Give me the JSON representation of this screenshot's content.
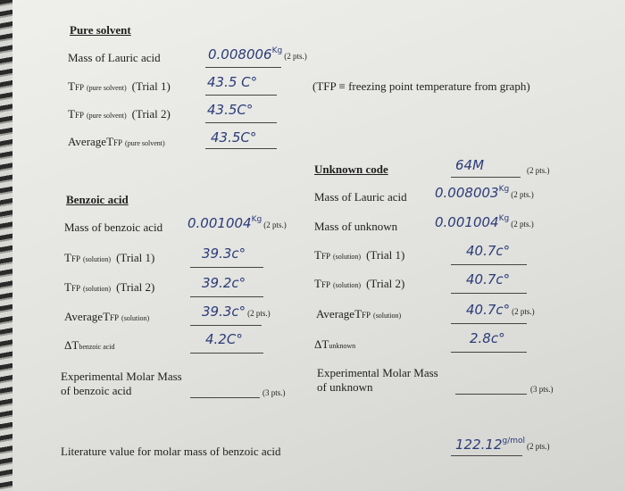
{
  "pure_solvent": {
    "heading": "Pure solvent",
    "mass_label": "Mass of Lauric acid",
    "mass_answer": "0.008006",
    "mass_unit": "Kg",
    "mass_points": "(2 pts.)",
    "note": "(TFP ≡ freezing point temperature from graph)",
    "trials": [
      {
        "symbol": "T",
        "sub": "FP",
        "qualifier": "(pure solvent)",
        "trial": "(Trial 1)",
        "answer": "43.5 C°"
      },
      {
        "symbol": "T",
        "sub": "FP",
        "qualifier": "(pure solvent)",
        "trial": "(Trial 2)",
        "answer": "43.5C°"
      }
    ],
    "average": {
      "prefix": "Average",
      "symbol": "T",
      "sub": "FP",
      "qualifier": "(pure solvent)",
      "answer": "43.5C°"
    }
  },
  "benzoic_acid": {
    "heading": "Benzoic acid",
    "mass_label": "Mass of benzoic acid",
    "mass_answer": "0.001004",
    "mass_unit": "Kg",
    "mass_points": "(2 pts.)",
    "trials": [
      {
        "symbol": "T",
        "sub": "FP",
        "qualifier": "(solution)",
        "trial": "(Trial 1)",
        "answer": "39.3c°"
      },
      {
        "symbol": "T",
        "sub": "FP",
        "qualifier": "(solution)",
        "trial": "(Trial 2)",
        "answer": "39.2c°"
      }
    ],
    "average": {
      "prefix": "Average",
      "symbol": "T",
      "sub": "FP",
      "qualifier": "(solution)",
      "answer": "39.3c°",
      "points": "(2 pts.)"
    },
    "delta": {
      "symbol": "ΔT",
      "qualifier": "benzoic acid",
      "answer": "4.2C°"
    }
  },
  "unknown": {
    "code_label": "Unknown code",
    "code_answer": "64M",
    "code_points": "(2 pts.)",
    "lauric_label": "Mass of Lauric acid",
    "lauric_answer": "0.008003",
    "lauric_unit": "Kg",
    "lauric_points": "(2 pts.)",
    "mass_label": "Mass of unknown",
    "mass_answer": "0.001004",
    "mass_unit": "Kg",
    "mass_points": "(2 pts.)",
    "trials": [
      {
        "symbol": "T",
        "sub": "FP",
        "qualifier": "(solution)",
        "trial": "(Trial 1)",
        "answer": "40.7c°"
      },
      {
        "symbol": "T",
        "sub": "FP",
        "qualifier": "(solution)",
        "trial": "(Trial 2)",
        "answer": "40.7c°"
      }
    ],
    "average": {
      "prefix": "Average",
      "symbol": "T",
      "sub": "FP",
      "qualifier": "(solution)",
      "answer": "40.7c°",
      "points": "(2 pts.)"
    },
    "delta": {
      "symbol": "ΔT",
      "qualifier": "unknown",
      "answer": "2.8c°"
    }
  },
  "molar_mass": {
    "left": {
      "line1": "Experimental Molar Mass",
      "line2": "of benzoic acid",
      "points": "(3 pts.)"
    },
    "right": {
      "line1": "Experimental Molar Mass",
      "line2": "of unknown",
      "points": "(3 pts.)"
    }
  },
  "literature": {
    "label": "Literature value for molar mass of benzoic acid",
    "answer": "122.12",
    "unit": "g/mol",
    "points": "(2 pts.)"
  }
}
